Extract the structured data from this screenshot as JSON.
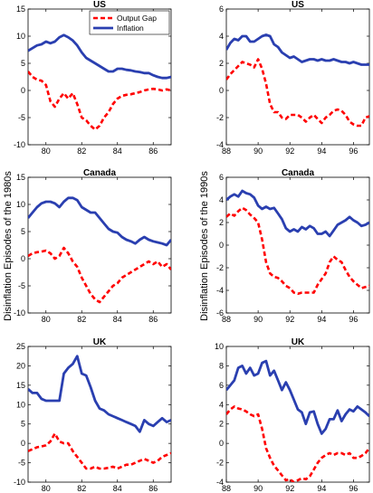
{
  "figure": {
    "ylabel_left": "Disinflation Episodes of the 1980s",
    "ylabel_right": "Disinflation Episodes of the 1990s"
  },
  "colors": {
    "output_gap": "#ff0000",
    "inflation": "#2a3fb0"
  },
  "chart_data": [
    {
      "type": "line",
      "title": "US",
      "xlim": [
        79,
        87
      ],
      "ylim": [
        -10,
        15
      ],
      "xticks": [
        80,
        82,
        84,
        86
      ],
      "yticks": [
        -10,
        -5,
        0,
        5,
        10,
        15
      ],
      "legend": {
        "placement": "top-right",
        "entries": [
          "Output Gap",
          "Inflation"
        ]
      },
      "series": [
        {
          "name": "Output Gap",
          "x": [
            79,
            79.25,
            79.5,
            79.75,
            80,
            80.25,
            80.5,
            80.75,
            81,
            81.25,
            81.5,
            81.75,
            82,
            82.25,
            82.5,
            82.75,
            83,
            83.25,
            83.5,
            83.75,
            84,
            84.25,
            84.5,
            84.75,
            85,
            85.25,
            85.5,
            85.75,
            86,
            86.25,
            86.5,
            86.75,
            87
          ],
          "y": [
            3.5,
            2.5,
            2.0,
            1.8,
            1.0,
            -2.0,
            -3.0,
            -1.5,
            -0.5,
            -1.5,
            -0.5,
            -2.5,
            -5.0,
            -5.5,
            -6.5,
            -7.2,
            -6.5,
            -5.0,
            -4.0,
            -2.5,
            -1.5,
            -1.0,
            -0.8,
            -0.7,
            -0.5,
            -0.3,
            0.0,
            0.2,
            0.3,
            0.2,
            0.0,
            0.2,
            0.0
          ]
        },
        {
          "name": "Inflation",
          "x": [
            79,
            79.25,
            79.5,
            79.75,
            80,
            80.25,
            80.5,
            80.75,
            81,
            81.25,
            81.5,
            81.75,
            82,
            82.25,
            82.5,
            82.75,
            83,
            83.25,
            83.5,
            83.75,
            84,
            84.25,
            84.5,
            84.75,
            85,
            85.25,
            85.5,
            85.75,
            86,
            86.25,
            86.5,
            86.75,
            87
          ],
          "y": [
            7.3,
            7.8,
            8.3,
            8.5,
            9.0,
            8.7,
            9.0,
            9.8,
            10.2,
            9.8,
            9.2,
            8.3,
            7.0,
            6.0,
            5.5,
            5.0,
            4.5,
            4.0,
            3.5,
            3.5,
            4.0,
            4.0,
            3.8,
            3.7,
            3.5,
            3.4,
            3.2,
            3.2,
            2.8,
            2.5,
            2.3,
            2.3,
            2.5
          ]
        }
      ]
    },
    {
      "type": "line",
      "title": "US",
      "xlim": [
        88,
        97
      ],
      "ylim": [
        -4,
        6
      ],
      "xticks": [
        88,
        90,
        92,
        94,
        96
      ],
      "yticks": [
        -4,
        -2,
        0,
        2,
        4,
        6
      ],
      "series": [
        {
          "name": "Output Gap",
          "x": [
            88,
            88.25,
            88.5,
            88.75,
            89,
            89.25,
            89.5,
            89.75,
            90,
            90.25,
            90.5,
            90.75,
            91,
            91.25,
            91.5,
            91.75,
            92,
            92.25,
            92.5,
            92.75,
            93,
            93.25,
            93.5,
            93.75,
            94,
            94.25,
            94.5,
            94.75,
            95,
            95.25,
            95.5,
            95.75,
            96,
            96.25,
            96.5,
            96.75,
            97
          ],
          "y": [
            0.8,
            1.2,
            1.5,
            1.8,
            2.1,
            2.0,
            1.9,
            1.7,
            2.3,
            1.6,
            0.5,
            -1.0,
            -1.6,
            -1.6,
            -2.0,
            -2.1,
            -1.8,
            -1.8,
            -1.8,
            -2.0,
            -2.3,
            -2.0,
            -1.8,
            -2.1,
            -2.4,
            -2.0,
            -1.8,
            -1.5,
            -1.4,
            -1.5,
            -1.8,
            -2.3,
            -2.5,
            -2.6,
            -2.6,
            -2.0,
            -1.9
          ]
        },
        {
          "name": "Inflation",
          "x": [
            88,
            88.25,
            88.5,
            88.75,
            89,
            89.25,
            89.5,
            89.75,
            90,
            90.25,
            90.5,
            90.75,
            91,
            91.25,
            91.5,
            91.75,
            92,
            92.25,
            92.5,
            92.75,
            93,
            93.25,
            93.5,
            93.75,
            94,
            94.25,
            94.5,
            94.75,
            95,
            95.25,
            95.5,
            95.75,
            96,
            96.25,
            96.5,
            96.75,
            97
          ],
          "y": [
            3.0,
            3.5,
            3.8,
            3.7,
            4.0,
            4.0,
            3.6,
            3.6,
            3.8,
            4.0,
            4.1,
            4.0,
            3.4,
            3.2,
            2.8,
            2.6,
            2.4,
            2.5,
            2.3,
            2.1,
            2.2,
            2.3,
            2.3,
            2.2,
            2.3,
            2.2,
            2.2,
            2.3,
            2.2,
            2.1,
            2.1,
            2.0,
            2.1,
            2.0,
            1.9,
            1.9,
            1.9
          ]
        }
      ]
    },
    {
      "type": "line",
      "title": "Canada",
      "xlim": [
        79,
        87
      ],
      "ylim": [
        -10,
        15
      ],
      "xticks": [
        80,
        82,
        84,
        86
      ],
      "yticks": [
        -10,
        -5,
        0,
        5,
        10,
        15
      ],
      "series": [
        {
          "name": "Output Gap",
          "x": [
            79,
            79.25,
            79.5,
            79.75,
            80,
            80.25,
            80.5,
            80.75,
            81,
            81.25,
            81.5,
            81.75,
            82,
            82.25,
            82.5,
            82.75,
            83,
            83.25,
            83.5,
            83.75,
            84,
            84.25,
            84.5,
            84.75,
            85,
            85.25,
            85.5,
            85.75,
            86,
            86.25,
            86.5,
            86.75,
            87
          ],
          "y": [
            0.5,
            1.0,
            1.2,
            1.3,
            1.5,
            1.0,
            0.0,
            0.5,
            2.0,
            1.0,
            -0.5,
            -1.5,
            -3.5,
            -5.0,
            -6.5,
            -7.5,
            -8.0,
            -7.0,
            -6.0,
            -5.0,
            -4.5,
            -3.5,
            -3.0,
            -2.5,
            -2.0,
            -1.5,
            -1.0,
            -0.5,
            -1.0,
            -0.5,
            -1.5,
            -1.0,
            -2.0
          ]
        },
        {
          "name": "Inflation",
          "x": [
            79,
            79.25,
            79.5,
            79.75,
            80,
            80.25,
            80.5,
            80.75,
            81,
            81.25,
            81.5,
            81.75,
            82,
            82.25,
            82.5,
            82.75,
            83,
            83.25,
            83.5,
            83.75,
            84,
            84.25,
            84.5,
            84.75,
            85,
            85.25,
            85.5,
            85.75,
            86,
            86.25,
            86.5,
            86.75,
            87
          ],
          "y": [
            7.5,
            8.5,
            9.5,
            10.2,
            10.5,
            10.5,
            10.2,
            9.5,
            10.5,
            11.2,
            11.2,
            10.8,
            9.5,
            9.0,
            8.5,
            8.5,
            7.5,
            6.5,
            5.5,
            5.0,
            4.8,
            4.0,
            3.5,
            3.2,
            2.8,
            3.5,
            4.0,
            3.5,
            3.2,
            3.0,
            2.8,
            2.5,
            3.5
          ]
        }
      ]
    },
    {
      "type": "line",
      "title": "Canada",
      "xlim": [
        88,
        97
      ],
      "ylim": [
        -6,
        6
      ],
      "xticks": [
        88,
        90,
        92,
        94,
        96
      ],
      "yticks": [
        -6,
        -4,
        -2,
        0,
        2,
        4,
        6
      ],
      "series": [
        {
          "name": "Output Gap",
          "x": [
            88,
            88.25,
            88.5,
            88.75,
            89,
            89.25,
            89.5,
            89.75,
            90,
            90.25,
            90.5,
            90.75,
            91,
            91.25,
            91.5,
            91.75,
            92,
            92.25,
            92.5,
            92.75,
            93,
            93.25,
            93.5,
            93.75,
            94,
            94.25,
            94.5,
            94.75,
            95,
            95.25,
            95.5,
            95.75,
            96,
            96.25,
            96.5,
            96.75,
            97
          ],
          "y": [
            2.5,
            2.8,
            2.6,
            3.0,
            3.3,
            3.1,
            2.7,
            2.4,
            2.0,
            0.5,
            -1.5,
            -2.5,
            -2.8,
            -2.9,
            -3.2,
            -3.6,
            -3.8,
            -4.2,
            -4.3,
            -4.2,
            -4.2,
            -4.2,
            -4.2,
            -3.5,
            -3.0,
            -2.5,
            -1.5,
            -1.0,
            -1.3,
            -1.5,
            -2.2,
            -2.8,
            -3.2,
            -3.5,
            -3.8,
            -3.7,
            -3.6
          ]
        },
        {
          "name": "Inflation",
          "x": [
            88,
            88.25,
            88.5,
            88.75,
            89,
            89.25,
            89.5,
            89.75,
            90,
            90.25,
            90.5,
            90.75,
            91,
            91.25,
            91.5,
            91.75,
            92,
            92.25,
            92.5,
            92.75,
            93,
            93.25,
            93.5,
            93.75,
            94,
            94.25,
            94.5,
            94.75,
            95,
            95.25,
            95.5,
            95.75,
            96,
            96.25,
            96.5,
            96.75,
            97
          ],
          "y": [
            4.0,
            4.3,
            4.5,
            4.3,
            4.8,
            4.6,
            4.5,
            4.2,
            3.5,
            3.2,
            3.4,
            3.2,
            3.3,
            2.8,
            2.3,
            1.5,
            1.2,
            1.4,
            1.2,
            1.6,
            1.4,
            1.7,
            1.5,
            1.0,
            1.0,
            1.2,
            0.8,
            1.3,
            1.8,
            2.0,
            2.2,
            2.5,
            2.2,
            2.0,
            1.7,
            1.8,
            2.0
          ]
        }
      ]
    },
    {
      "type": "line",
      "title": "UK",
      "xlim": [
        79,
        87
      ],
      "ylim": [
        -10,
        25
      ],
      "xticks": [
        80,
        82,
        84,
        86
      ],
      "yticks": [
        -10,
        -5,
        0,
        5,
        10,
        15,
        20,
        25
      ],
      "series": [
        {
          "name": "Output Gap",
          "x": [
            79,
            79.25,
            79.5,
            79.75,
            80,
            80.25,
            80.5,
            80.75,
            81,
            81.25,
            81.5,
            81.75,
            82,
            82.25,
            82.5,
            82.75,
            83,
            83.25,
            83.5,
            83.75,
            84,
            84.25,
            84.5,
            84.75,
            85,
            85.25,
            85.5,
            85.75,
            86,
            86.25,
            86.5,
            86.75,
            87
          ],
          "y": [
            -2.0,
            -1.5,
            -1.0,
            -0.8,
            -0.5,
            0.5,
            2.5,
            0.5,
            0.0,
            0.0,
            -2.0,
            -3.5,
            -5.0,
            -6.5,
            -6.5,
            -6.0,
            -6.5,
            -6.5,
            -6.3,
            -6.0,
            -6.5,
            -6.0,
            -5.5,
            -5.5,
            -5.0,
            -4.5,
            -4.0,
            -4.5,
            -5.0,
            -4.5,
            -3.5,
            -3.0,
            -2.5
          ]
        },
        {
          "name": "Inflation",
          "x": [
            79,
            79.25,
            79.5,
            79.75,
            80,
            80.25,
            80.5,
            80.75,
            81,
            81.25,
            81.5,
            81.75,
            82,
            82.25,
            82.5,
            82.75,
            83,
            83.25,
            83.5,
            83.75,
            84,
            84.25,
            84.5,
            84.75,
            85,
            85.25,
            85.5,
            85.75,
            86,
            86.25,
            86.5,
            86.75,
            87
          ],
          "y": [
            14.0,
            13.0,
            13.0,
            11.5,
            11.0,
            11.0,
            11.0,
            11.0,
            18.0,
            19.5,
            20.5,
            22.5,
            18.0,
            17.5,
            14.5,
            11.0,
            9.0,
            8.5,
            7.5,
            7.0,
            6.5,
            6.0,
            5.5,
            5.0,
            4.5,
            3.0,
            6.0,
            5.0,
            4.5,
            5.5,
            6.5,
            5.5,
            6.0
          ]
        }
      ]
    },
    {
      "type": "line",
      "title": "UK",
      "xlim": [
        88,
        97
      ],
      "ylim": [
        -4,
        10
      ],
      "xticks": [
        88,
        90,
        92,
        94,
        96
      ],
      "yticks": [
        -4,
        -2,
        0,
        2,
        4,
        6,
        8,
        10
      ],
      "series": [
        {
          "name": "Output Gap",
          "x": [
            88,
            88.25,
            88.5,
            88.75,
            89,
            89.25,
            89.5,
            89.75,
            90,
            90.25,
            90.5,
            90.75,
            91,
            91.25,
            91.5,
            91.75,
            92,
            92.25,
            92.5,
            92.75,
            93,
            93.25,
            93.5,
            93.75,
            94,
            94.25,
            94.5,
            94.75,
            95,
            95.25,
            95.5,
            95.75,
            96,
            96.25,
            96.5,
            96.75,
            97
          ],
          "y": [
            3.0,
            3.5,
            3.8,
            3.6,
            3.5,
            3.3,
            3.0,
            2.8,
            3.0,
            1.5,
            -0.5,
            -1.5,
            -2.3,
            -2.8,
            -3.3,
            -3.8,
            -3.7,
            -4.0,
            -3.8,
            -3.6,
            -3.7,
            -3.4,
            -2.7,
            -2.0,
            -1.5,
            -1.2,
            -1.0,
            -1.2,
            -1.0,
            -1.0,
            -1.2,
            -1.0,
            -1.5,
            -1.5,
            -1.3,
            -1.0,
            -0.5
          ]
        },
        {
          "name": "Inflation",
          "x": [
            88,
            88.25,
            88.5,
            88.75,
            89,
            89.25,
            89.5,
            89.75,
            90,
            90.25,
            90.5,
            90.75,
            91,
            91.25,
            91.5,
            91.75,
            92,
            92.25,
            92.5,
            92.75,
            93,
            93.25,
            93.5,
            93.75,
            94,
            94.25,
            94.5,
            94.75,
            95,
            95.25,
            95.5,
            95.75,
            96,
            96.25,
            96.5,
            96.75,
            97
          ],
          "y": [
            5.5,
            6.0,
            6.5,
            7.8,
            8.0,
            7.2,
            7.8,
            7.0,
            7.2,
            8.3,
            8.5,
            7.0,
            7.5,
            6.5,
            5.5,
            6.3,
            5.5,
            4.5,
            3.5,
            3.2,
            2.0,
            3.2,
            3.3,
            2.0,
            1.0,
            1.5,
            2.5,
            2.5,
            3.4,
            2.3,
            3.0,
            3.5,
            3.3,
            3.8,
            3.5,
            3.2,
            2.8
          ]
        }
      ]
    }
  ]
}
